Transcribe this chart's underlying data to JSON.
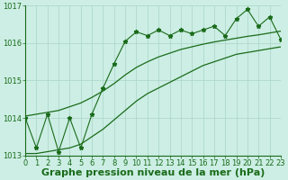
{
  "xlabel": "Graphe pression niveau de la mer (hPa)",
  "hours": [
    0,
    1,
    2,
    3,
    4,
    5,
    6,
    7,
    8,
    9,
    10,
    11,
    12,
    13,
    14,
    15,
    16,
    17,
    18,
    19,
    20,
    21,
    22,
    23
  ],
  "main_line": [
    1014.0,
    1013.2,
    1014.1,
    1013.1,
    1014.0,
    1013.2,
    1014.1,
    1014.8,
    1015.45,
    1016.05,
    1016.3,
    1016.2,
    1016.35,
    1016.2,
    1016.35,
    1016.25,
    1016.35,
    1016.45,
    1016.2,
    1016.65,
    1016.9,
    1016.45,
    1016.7,
    1016.1
  ],
  "min_line": [
    1013.05,
    1013.05,
    1013.1,
    1013.15,
    1013.2,
    1013.3,
    1013.5,
    1013.7,
    1013.95,
    1014.2,
    1014.45,
    1014.65,
    1014.8,
    1014.95,
    1015.1,
    1015.25,
    1015.4,
    1015.5,
    1015.6,
    1015.7,
    1015.75,
    1015.8,
    1015.85,
    1015.9
  ],
  "max_line": [
    1014.05,
    1014.1,
    1014.15,
    1014.2,
    1014.3,
    1014.4,
    1014.55,
    1014.72,
    1014.92,
    1015.15,
    1015.35,
    1015.5,
    1015.63,
    1015.73,
    1015.83,
    1015.9,
    1015.97,
    1016.03,
    1016.08,
    1016.13,
    1016.18,
    1016.22,
    1016.27,
    1016.32
  ],
  "line_color": "#1a6b1a",
  "bg_color": "#cceee4",
  "grid_color": "#aad4c8",
  "ylim": [
    1013.0,
    1017.0
  ],
  "yticks": [
    1013,
    1014,
    1015,
    1016,
    1017
  ],
  "xlabel_fontsize": 8,
  "tick_fontsize": 6
}
